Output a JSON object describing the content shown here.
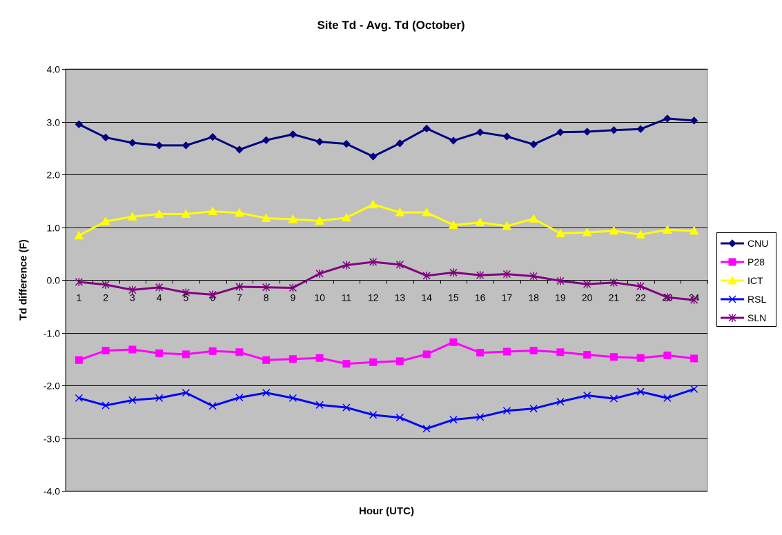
{
  "chart_data": {
    "type": "line",
    "title": "Site Td - Avg. Td (October)",
    "xlabel": "Hour (UTC)",
    "ylabel": "Td difference (F)",
    "categories": [
      "1",
      "2",
      "3",
      "4",
      "5",
      "6",
      "7",
      "8",
      "9",
      "10",
      "11",
      "12",
      "13",
      "14",
      "15",
      "16",
      "17",
      "18",
      "19",
      "20",
      "21",
      "22",
      "23",
      "24"
    ],
    "ylim": [
      -4.0,
      4.0
    ],
    "yticks": [
      "4.0",
      "3.0",
      "2.0",
      "1.0",
      "0.0",
      "-1.0",
      "-2.0",
      "-3.0",
      "-4.0"
    ],
    "grid": true,
    "plot_background": "#c0c0c0",
    "legend_position": "right",
    "series": [
      {
        "name": "CNU",
        "color": "#000080",
        "marker": "diamond",
        "values": [
          2.95,
          2.7,
          2.6,
          2.55,
          2.55,
          2.71,
          2.47,
          2.65,
          2.76,
          2.62,
          2.58,
          2.34,
          2.59,
          2.87,
          2.64,
          2.8,
          2.72,
          2.57,
          2.8,
          2.81,
          2.84,
          2.86,
          3.06,
          3.02
        ]
      },
      {
        "name": "P28",
        "color": "#ff00ff",
        "marker": "square",
        "values": [
          -1.52,
          -1.34,
          -1.32,
          -1.39,
          -1.41,
          -1.35,
          -1.37,
          -1.52,
          -1.5,
          -1.48,
          -1.59,
          -1.56,
          -1.54,
          -1.41,
          -1.18,
          -1.38,
          -1.36,
          -1.34,
          -1.37,
          -1.42,
          -1.46,
          -1.48,
          -1.43,
          -1.49
        ]
      },
      {
        "name": "ICT",
        "color": "#ffff00",
        "marker": "triangle",
        "values": [
          0.84,
          1.11,
          1.2,
          1.25,
          1.25,
          1.3,
          1.27,
          1.17,
          1.15,
          1.12,
          1.18,
          1.43,
          1.28,
          1.28,
          1.04,
          1.09,
          1.02,
          1.16,
          0.88,
          0.9,
          0.93,
          0.86,
          0.95,
          0.93
        ]
      },
      {
        "name": "RSL",
        "color": "#0000ff",
        "marker": "x",
        "values": [
          -2.24,
          -2.38,
          -2.28,
          -2.24,
          -2.14,
          -2.39,
          -2.23,
          -2.14,
          -2.24,
          -2.37,
          -2.42,
          -2.56,
          -2.61,
          -2.82,
          -2.65,
          -2.6,
          -2.48,
          -2.44,
          -2.31,
          -2.19,
          -2.25,
          -2.12,
          -2.24,
          -2.07
        ]
      },
      {
        "name": "SLN",
        "color": "#800080",
        "marker": "star",
        "values": [
          -0.04,
          -0.09,
          -0.19,
          -0.14,
          -0.24,
          -0.28,
          -0.13,
          -0.14,
          -0.15,
          0.12,
          0.28,
          0.34,
          0.29,
          0.08,
          0.14,
          0.09,
          0.11,
          0.07,
          -0.02,
          -0.08,
          -0.05,
          -0.12,
          -0.33,
          -0.38
        ]
      }
    ]
  }
}
